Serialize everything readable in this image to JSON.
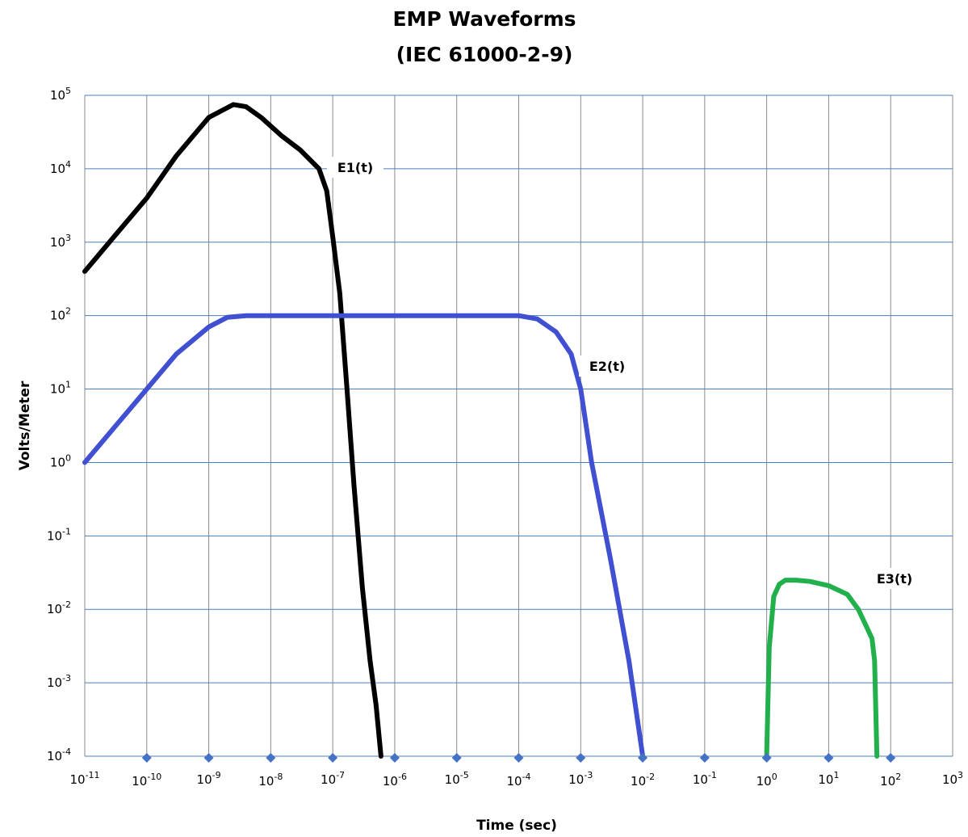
{
  "chart_data": {
    "type": "line",
    "title": "EMP Waveforms",
    "subtitle": "(IEC 61000-2-9)",
    "xlabel": "Time (sec)",
    "ylabel": "Volts/Meter",
    "x_scale": "log",
    "y_scale": "log",
    "xlim": [
      1e-11,
      1000
    ],
    "ylim": [
      0.0001,
      100000
    ],
    "grid": true,
    "x_ticks": [
      {
        "base": "10",
        "exp": "-11"
      },
      {
        "base": "10",
        "exp": "-10"
      },
      {
        "base": "10",
        "exp": "-9"
      },
      {
        "base": "10",
        "exp": "-8"
      },
      {
        "base": "10",
        "exp": "-7"
      },
      {
        "base": "10",
        "exp": "-6"
      },
      {
        "base": "10",
        "exp": "-5"
      },
      {
        "base": "10",
        "exp": "-4"
      },
      {
        "base": "10",
        "exp": "-3"
      },
      {
        "base": "10",
        "exp": "-2"
      },
      {
        "base": "10",
        "exp": "-1"
      },
      {
        "base": "10",
        "exp": "0"
      },
      {
        "base": "10",
        "exp": "1"
      },
      {
        "base": "10",
        "exp": "2"
      },
      {
        "base": "10",
        "exp": "3"
      }
    ],
    "y_ticks": [
      {
        "base": "10",
        "exp": "5"
      },
      {
        "base": "10",
        "exp": "4"
      },
      {
        "base": "10",
        "exp": "3"
      },
      {
        "base": "10",
        "exp": "2"
      },
      {
        "base": "10",
        "exp": "1"
      },
      {
        "base": "10",
        "exp": "0"
      },
      {
        "base": "10",
        "exp": "-1"
      },
      {
        "base": "10",
        "exp": "-2"
      },
      {
        "base": "10",
        "exp": "-3"
      },
      {
        "base": "10",
        "exp": "-4"
      }
    ],
    "axis_markers": {
      "color": "#4472C4",
      "x": [
        1e-10,
        1e-09,
        1e-08,
        1e-07,
        1e-06,
        1e-05,
        0.0001,
        0.001,
        0.01,
        0.1,
        1,
        10,
        100
      ]
    },
    "series": [
      {
        "name": "E1(t)",
        "color": "#000000",
        "x": [
          1e-11,
          3e-11,
          1e-10,
          3e-10,
          1e-09,
          2.5e-09,
          4e-09,
          7e-09,
          1.5e-08,
          3e-08,
          6e-08,
          8e-08,
          1e-07,
          1.3e-07,
          1.7e-07,
          2.2e-07,
          3e-07,
          4e-07,
          5e-07,
          6e-07
        ],
        "y": [
          400,
          1200,
          4000,
          15000,
          50000,
          75000,
          70000,
          50000,
          28000,
          18000,
          10000,
          5000,
          1200,
          200,
          10,
          0.5,
          0.02,
          0.002,
          0.0005,
          0.0001
        ]
      },
      {
        "name": "E2(t)",
        "color": "#4050D0",
        "x": [
          1e-11,
          3e-11,
          1e-10,
          3e-10,
          1e-09,
          2e-09,
          4e-09,
          1e-08,
          1e-07,
          1e-06,
          1e-05,
          0.0001,
          0.0002,
          0.0004,
          0.0007,
          0.001,
          0.0015,
          0.003,
          0.006,
          0.01
        ],
        "y": [
          1,
          3,
          10,
          30,
          70,
          95,
          100,
          100,
          100,
          100,
          100,
          100,
          90,
          60,
          30,
          10,
          1,
          0.05,
          0.002,
          0.0001
        ]
      },
      {
        "name": "E3(t)",
        "color": "#22B04C",
        "x": [
          1,
          1.1,
          1.3,
          1.6,
          2,
          3,
          5,
          10,
          20,
          30,
          40,
          50,
          55,
          60
        ],
        "y": [
          0.0001,
          0.003,
          0.015,
          0.022,
          0.025,
          0.025,
          0.024,
          0.021,
          0.016,
          0.01,
          0.006,
          0.004,
          0.002,
          0.0001
        ]
      }
    ]
  }
}
